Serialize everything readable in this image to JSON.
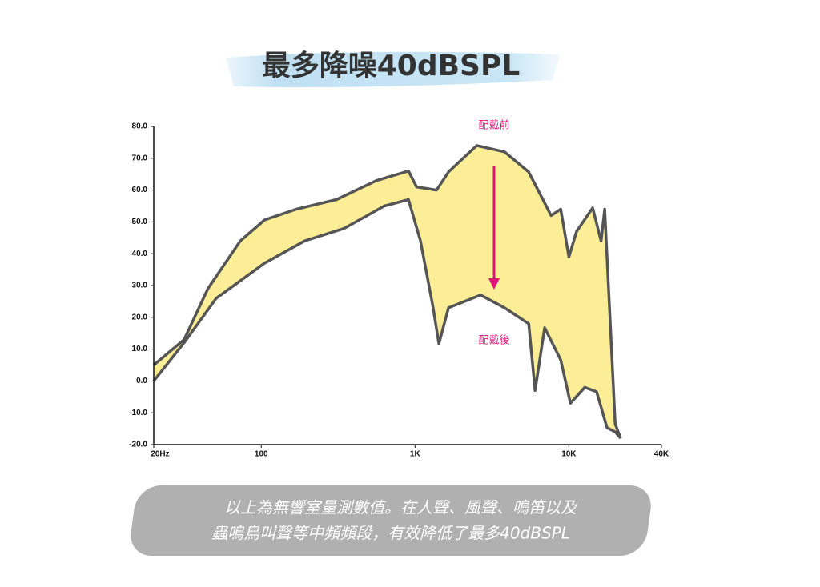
{
  "chart_data": {
    "type": "line",
    "title": "最多降噪40dBSPL",
    "annotations": [
      "配戴前",
      "配戴後"
    ],
    "caption": [
      "以上為無響室量測數值。在人聲、風聲、鳴笛以及",
      "蟲鳴鳥叫聲等中頻頻段，有效降低了最多40dBSPL"
    ],
    "log_x": true,
    "fill_between": "#fbee97",
    "xlim": [
      20,
      40000
    ],
    "xticks": [
      {
        "value": 20,
        "label": "20Hz"
      },
      {
        "value": 100,
        "label": "100"
      },
      {
        "value": 1000,
        "label": "1K"
      },
      {
        "value": 10000,
        "label": "10K"
      },
      {
        "value": 40000,
        "label": "40K"
      }
    ],
    "ylim": [
      -20,
      80
    ],
    "yticks": [
      {
        "value": 80,
        "label": "80.0"
      },
      {
        "value": 70,
        "label": "70.0"
      },
      {
        "value": 60,
        "label": "60.0"
      },
      {
        "value": 50,
        "label": "50.0"
      },
      {
        "value": 40,
        "label": "40.0"
      },
      {
        "value": 30,
        "label": "30.0"
      },
      {
        "value": 20,
        "label": "20.0"
      },
      {
        "value": 10,
        "label": "10.0"
      },
      {
        "value": 0,
        "label": "0.0"
      },
      {
        "value": -10,
        "label": "-10.0"
      },
      {
        "value": -20,
        "label": "-20.0"
      }
    ],
    "series": [
      {
        "name": "配戴前",
        "color": "#555555",
        "x": [
          20,
          31.5,
          45,
          73,
          105,
          169,
          308,
          561,
          906,
          1023,
          1380,
          1650,
          2520,
          3820,
          5480,
          7670,
          8850,
          10000,
          11220,
          14290,
          16200,
          17100,
          20000,
          21700
        ],
        "values": [
          5,
          13,
          29,
          44,
          50.6,
          54,
          57,
          63,
          66,
          61,
          60,
          65.7,
          74,
          72,
          65.7,
          52,
          54,
          39,
          47,
          54.4,
          44,
          54,
          -13.5,
          -18
        ]
      },
      {
        "name": "配戴後",
        "color": "#555555",
        "x": [
          20,
          31.5,
          51,
          105,
          191,
          347,
          631,
          906,
          1085,
          1300,
          1430,
          1650,
          2670,
          3820,
          5480,
          6030,
          6960,
          8850,
          10240,
          12680,
          15140,
          17700,
          20000,
          21700
        ],
        "values": [
          0,
          12,
          26,
          37,
          44,
          48,
          55,
          57,
          44,
          24,
          11.7,
          23,
          27,
          23,
          18,
          -3,
          16.7,
          6.6,
          -7,
          -2,
          -3.4,
          -14.7,
          -16,
          -18
        ]
      }
    ]
  }
}
